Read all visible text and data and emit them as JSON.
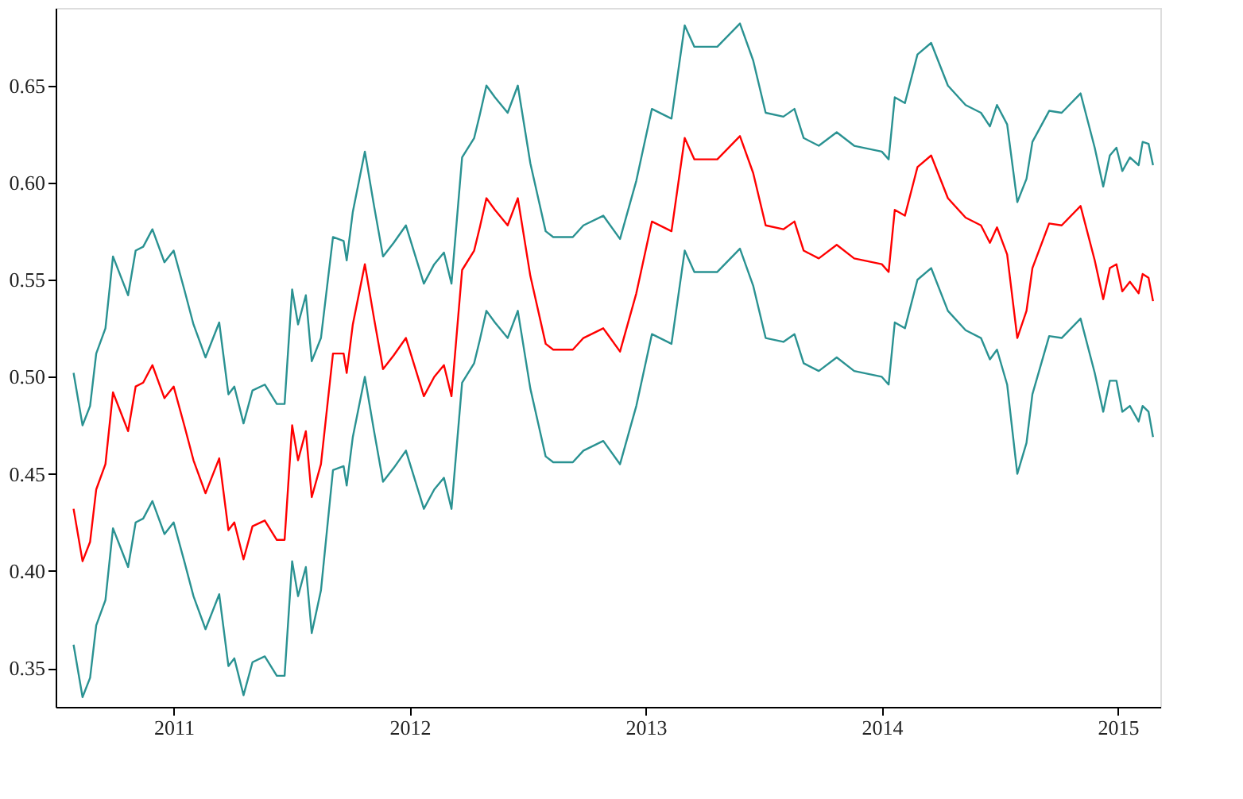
{
  "chart_data": {
    "type": "line",
    "x": [
      2010.576,
      2010.614,
      2010.646,
      2010.672,
      2010.711,
      2010.743,
      2010.775,
      2010.807,
      2010.839,
      2010.871,
      2010.91,
      2010.961,
      2011.0,
      2011.045,
      2011.084,
      2011.135,
      2011.193,
      2011.232,
      2011.257,
      2011.296,
      2011.334,
      2011.386,
      2011.437,
      2011.47,
      2011.502,
      2011.527,
      2011.56,
      2011.585,
      2011.624,
      2011.675,
      2011.72,
      2011.733,
      2011.759,
      2011.81,
      2011.849,
      2011.887,
      2011.932,
      2011.984,
      2012.06,
      2012.104,
      2012.145,
      2012.177,
      2012.222,
      2012.273,
      2012.297,
      2012.325,
      2012.361,
      2012.415,
      2012.458,
      2012.511,
      2012.576,
      2012.608,
      2012.691,
      2012.736,
      2012.82,
      2012.891,
      2012.96,
      2013.026,
      2013.109,
      2013.165,
      2013.206,
      2013.303,
      2013.399,
      2013.455,
      2013.508,
      2013.583,
      2013.63,
      2013.669,
      2013.733,
      2013.809,
      2013.883,
      2014.0,
      2014.029,
      2014.055,
      2014.098,
      2014.151,
      2014.209,
      2014.28,
      2014.355,
      2014.42,
      2014.458,
      2014.488,
      2014.531,
      2014.574,
      2014.613,
      2014.638,
      2014.709,
      2014.762,
      2014.842,
      2014.902,
      2014.938,
      2014.966,
      2014.994,
      2015.019,
      2015.051,
      2015.088,
      2015.105,
      2015.13,
      2015.149
    ],
    "series": [
      {
        "color": "#2a9292",
        "values": [
          0.502,
          0.475,
          0.485,
          0.512,
          0.525,
          0.562,
          0.552,
          0.542,
          0.565,
          0.567,
          0.576,
          0.559,
          0.565,
          0.545,
          0.527,
          0.51,
          0.528,
          0.491,
          0.495,
          0.476,
          0.493,
          0.496,
          0.486,
          0.486,
          0.545,
          0.527,
          0.542,
          0.508,
          0.52,
          0.572,
          0.57,
          0.56,
          0.585,
          0.616,
          0.588,
          0.562,
          0.569,
          0.578,
          0.548,
          0.558,
          0.564,
          0.548,
          0.613,
          0.623,
          0.635,
          0.65,
          0.644,
          0.636,
          0.65,
          0.61,
          0.575,
          0.572,
          0.572,
          0.578,
          0.583,
          0.571,
          0.601,
          0.638,
          0.633,
          0.681,
          0.67,
          0.67,
          0.682,
          0.663,
          0.636,
          0.634,
          0.638,
          0.623,
          0.619,
          0.626,
          0.619,
          0.616,
          0.612,
          0.644,
          0.641,
          0.666,
          0.672,
          0.65,
          0.64,
          0.636,
          0.629,
          0.64,
          0.63,
          0.59,
          0.602,
          0.621,
          0.637,
          0.636,
          0.646,
          0.618,
          0.598,
          0.614,
          0.618,
          0.606,
          0.613,
          0.609,
          0.621,
          0.62,
          0.609
        ]
      },
      {
        "color": "#ff0000",
        "values": [
          0.432,
          0.405,
          0.415,
          0.442,
          0.455,
          0.492,
          0.482,
          0.472,
          0.495,
          0.497,
          0.506,
          0.489,
          0.495,
          0.475,
          0.457,
          0.44,
          0.458,
          0.421,
          0.425,
          0.406,
          0.423,
          0.426,
          0.416,
          0.416,
          0.475,
          0.457,
          0.472,
          0.438,
          0.455,
          0.512,
          0.512,
          0.502,
          0.527,
          0.558,
          0.53,
          0.504,
          0.511,
          0.52,
          0.49,
          0.5,
          0.506,
          0.49,
          0.555,
          0.565,
          0.577,
          0.592,
          0.586,
          0.578,
          0.592,
          0.552,
          0.517,
          0.514,
          0.514,
          0.52,
          0.525,
          0.513,
          0.543,
          0.58,
          0.575,
          0.623,
          0.612,
          0.612,
          0.624,
          0.605,
          0.578,
          0.576,
          0.58,
          0.565,
          0.561,
          0.568,
          0.561,
          0.558,
          0.554,
          0.586,
          0.583,
          0.608,
          0.614,
          0.592,
          0.582,
          0.578,
          0.569,
          0.577,
          0.563,
          0.52,
          0.534,
          0.556,
          0.579,
          0.578,
          0.588,
          0.56,
          0.54,
          0.556,
          0.558,
          0.544,
          0.549,
          0.543,
          0.553,
          0.551,
          0.539
        ]
      },
      {
        "color": "#2a9292",
        "values": [
          0.362,
          0.335,
          0.345,
          0.372,
          0.385,
          0.422,
          0.412,
          0.402,
          0.425,
          0.427,
          0.436,
          0.419,
          0.425,
          0.405,
          0.387,
          0.37,
          0.388,
          0.351,
          0.355,
          0.336,
          0.353,
          0.356,
          0.346,
          0.346,
          0.405,
          0.387,
          0.402,
          0.368,
          0.39,
          0.452,
          0.454,
          0.444,
          0.469,
          0.5,
          0.472,
          0.446,
          0.453,
          0.462,
          0.432,
          0.442,
          0.448,
          0.432,
          0.497,
          0.507,
          0.519,
          0.534,
          0.528,
          0.52,
          0.534,
          0.494,
          0.459,
          0.456,
          0.456,
          0.462,
          0.467,
          0.455,
          0.485,
          0.522,
          0.517,
          0.565,
          0.554,
          0.554,
          0.566,
          0.547,
          0.52,
          0.518,
          0.522,
          0.507,
          0.503,
          0.51,
          0.503,
          0.5,
          0.496,
          0.528,
          0.525,
          0.55,
          0.556,
          0.534,
          0.524,
          0.52,
          0.509,
          0.514,
          0.496,
          0.45,
          0.466,
          0.491,
          0.521,
          0.52,
          0.53,
          0.502,
          0.482,
          0.498,
          0.498,
          0.482,
          0.485,
          0.477,
          0.485,
          0.482,
          0.469
        ]
      }
    ],
    "xlim": [
      2010.5,
      2015.18
    ],
    "xticks": [
      2011,
      2012,
      2013,
      2014,
      2015
    ],
    "ylim": [
      0.33,
      0.69
    ],
    "yticks": [
      0.35,
      {
        "value": 0.4,
        "label": "0.40"
      },
      0.45,
      {
        "value": 0.5,
        "label": "0.50"
      },
      0.55,
      {
        "value": 0.6,
        "label": "0.60"
      },
      0.65
    ],
    "grid": false,
    "legend": false,
    "marker": "none",
    "line_style": "solid"
  }
}
